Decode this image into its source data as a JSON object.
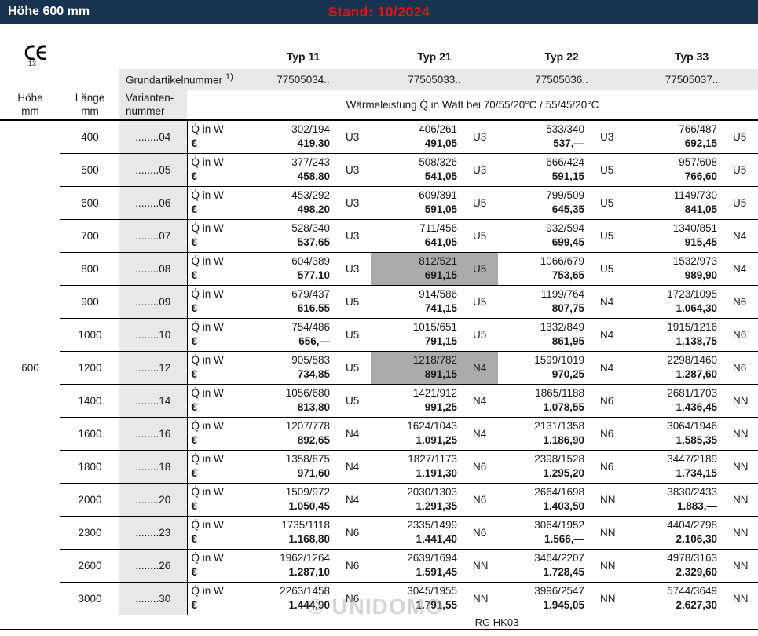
{
  "topbar": {
    "title": "Höhe 600 mm",
    "stand": "Stand: 10/2024"
  },
  "ce_mark": {
    "number": "13"
  },
  "header": {
    "typ_labels": [
      "Typ 11",
      "Typ 21",
      "Typ 22",
      "Typ 33"
    ],
    "grundartikel": {
      "label": "Grundartikelnummer",
      "sup": "1)",
      "values": [
        "77505034..",
        "77505033..",
        "77505036..",
        "77505037.."
      ]
    },
    "col_headers": {
      "hoehe": [
        "Höhe",
        "mm"
      ],
      "laenge": [
        "Länge",
        "mm"
      ],
      "variante": [
        "Varianten-",
        "nummer"
      ]
    },
    "waermeleistung": "Wärmeleistung Q̇ in Watt bei 70/55/20°C / 55/45/20°C"
  },
  "labels": {
    "watt": "Q̇ in W",
    "euro": "€"
  },
  "table": {
    "hoehe_value": "600",
    "rows": [
      {
        "laenge": "400",
        "variante": "........04",
        "typ11": {
          "watt": "302/194",
          "preis": "419,30",
          "code": "U3",
          "highlight": false
        },
        "typ21": {
          "watt": "406/261",
          "preis": "491,05",
          "code": "U3",
          "highlight": false
        },
        "typ22": {
          "watt": "533/340",
          "preis": "537,—",
          "code": "U3",
          "highlight": false
        },
        "typ33": {
          "watt": "766/487",
          "preis": "692,15",
          "code": "U5",
          "highlight": false
        }
      },
      {
        "laenge": "500",
        "variante": "........05",
        "typ11": {
          "watt": "377/243",
          "preis": "458,80",
          "code": "U3",
          "highlight": false
        },
        "typ21": {
          "watt": "508/326",
          "preis": "541,05",
          "code": "U3",
          "highlight": false
        },
        "typ22": {
          "watt": "666/424",
          "preis": "591,15",
          "code": "U5",
          "highlight": false
        },
        "typ33": {
          "watt": "957/608",
          "preis": "766,60",
          "code": "U5",
          "highlight": false
        }
      },
      {
        "laenge": "600",
        "variante": "........06",
        "typ11": {
          "watt": "453/292",
          "preis": "498,20",
          "code": "U3",
          "highlight": false
        },
        "typ21": {
          "watt": "609/391",
          "preis": "591,05",
          "code": "U5",
          "highlight": false
        },
        "typ22": {
          "watt": "799/509",
          "preis": "645,35",
          "code": "U5",
          "highlight": false
        },
        "typ33": {
          "watt": "1149/730",
          "preis": "841,05",
          "code": "U5",
          "highlight": false
        }
      },
      {
        "laenge": "700",
        "variante": "........07",
        "typ11": {
          "watt": "528/340",
          "preis": "537,65",
          "code": "U3",
          "highlight": false
        },
        "typ21": {
          "watt": "711/456",
          "preis": "641,05",
          "code": "U5",
          "highlight": false
        },
        "typ22": {
          "watt": "932/594",
          "preis": "699,45",
          "code": "U5",
          "highlight": false
        },
        "typ33": {
          "watt": "1340/851",
          "preis": "915,45",
          "code": "N4",
          "highlight": false
        }
      },
      {
        "laenge": "800",
        "variante": "........08",
        "typ11": {
          "watt": "604/389",
          "preis": "577,10",
          "code": "U3",
          "highlight": false
        },
        "typ21": {
          "watt": "812/521",
          "preis": "691,15",
          "code": "U5",
          "highlight": true
        },
        "typ22": {
          "watt": "1066/679",
          "preis": "753,65",
          "code": "U5",
          "highlight": false
        },
        "typ33": {
          "watt": "1532/973",
          "preis": "989,90",
          "code": "N4",
          "highlight": false
        }
      },
      {
        "laenge": "900",
        "variante": "........09",
        "typ11": {
          "watt": "679/437",
          "preis": "616,55",
          "code": "U5",
          "highlight": false
        },
        "typ21": {
          "watt": "914/586",
          "preis": "741,15",
          "code": "U5",
          "highlight": false
        },
        "typ22": {
          "watt": "1199/764",
          "preis": "807,75",
          "code": "N4",
          "highlight": false
        },
        "typ33": {
          "watt": "1723/1095",
          "preis": "1.064,30",
          "code": "N6",
          "highlight": false
        }
      },
      {
        "laenge": "1000",
        "variante": "........10",
        "typ11": {
          "watt": "754/486",
          "preis": "656,—",
          "code": "U5",
          "highlight": false
        },
        "typ21": {
          "watt": "1015/651",
          "preis": "791,15",
          "code": "U5",
          "highlight": false
        },
        "typ22": {
          "watt": "1332/849",
          "preis": "861,95",
          "code": "N4",
          "highlight": false
        },
        "typ33": {
          "watt": "1915/1216",
          "preis": "1.138,75",
          "code": "N6",
          "highlight": false
        }
      },
      {
        "laenge": "1200",
        "variante": "........12",
        "typ11": {
          "watt": "905/583",
          "preis": "734,85",
          "code": "U5",
          "highlight": false
        },
        "typ21": {
          "watt": "1218/782",
          "preis": "891,15",
          "code": "N4",
          "highlight": true
        },
        "typ22": {
          "watt": "1599/1019",
          "preis": "970,25",
          "code": "N4",
          "highlight": false
        },
        "typ33": {
          "watt": "2298/1460",
          "preis": "1.287,60",
          "code": "N6",
          "highlight": false
        }
      },
      {
        "laenge": "1400",
        "variante": "........14",
        "typ11": {
          "watt": "1056/680",
          "preis": "813,80",
          "code": "U5",
          "highlight": false
        },
        "typ21": {
          "watt": "1421/912",
          "preis": "991,25",
          "code": "N4",
          "highlight": false
        },
        "typ22": {
          "watt": "1865/1188",
          "preis": "1.078,55",
          "code": "N6",
          "highlight": false
        },
        "typ33": {
          "watt": "2681/1703",
          "preis": "1.436,45",
          "code": "NN",
          "highlight": false
        }
      },
      {
        "laenge": "1600",
        "variante": "........16",
        "typ11": {
          "watt": "1207/778",
          "preis": "892,65",
          "code": "N4",
          "highlight": false
        },
        "typ21": {
          "watt": "1624/1043",
          "preis": "1.091,25",
          "code": "N4",
          "highlight": false
        },
        "typ22": {
          "watt": "2131/1358",
          "preis": "1.186,90",
          "code": "N6",
          "highlight": false
        },
        "typ33": {
          "watt": "3064/1946",
          "preis": "1.585,35",
          "code": "NN",
          "highlight": false
        }
      },
      {
        "laenge": "1800",
        "variante": "........18",
        "typ11": {
          "watt": "1358/875",
          "preis": "971,60",
          "code": "N4",
          "highlight": false
        },
        "typ21": {
          "watt": "1827/1173",
          "preis": "1.191,30",
          "code": "N6",
          "highlight": false
        },
        "typ22": {
          "watt": "2398/1528",
          "preis": "1.295,20",
          "code": "N6",
          "highlight": false
        },
        "typ33": {
          "watt": "3447/2189",
          "preis": "1.734,15",
          "code": "NN",
          "highlight": false
        }
      },
      {
        "laenge": "2000",
        "variante": "........20",
        "typ11": {
          "watt": "1509/972",
          "preis": "1.050,45",
          "code": "N4",
          "highlight": false
        },
        "typ21": {
          "watt": "2030/1303",
          "preis": "1.291,35",
          "code": "N6",
          "highlight": false
        },
        "typ22": {
          "watt": "2664/1698",
          "preis": "1.403,50",
          "code": "NN",
          "highlight": false
        },
        "typ33": {
          "watt": "3830/2433",
          "preis": "1.883,—",
          "code": "NN",
          "highlight": false
        }
      },
      {
        "laenge": "2300",
        "variante": "........23",
        "typ11": {
          "watt": "1735/1118",
          "preis": "1.168,80",
          "code": "N6",
          "highlight": false
        },
        "typ21": {
          "watt": "2335/1499",
          "preis": "1.441,40",
          "code": "N6",
          "highlight": false
        },
        "typ22": {
          "watt": "3064/1952",
          "preis": "1.566,—",
          "code": "NN",
          "highlight": false
        },
        "typ33": {
          "watt": "4404/2798",
          "preis": "2.106,30",
          "code": "NN",
          "highlight": false
        }
      },
      {
        "laenge": "2600",
        "variante": "........26",
        "typ11": {
          "watt": "1962/1264",
          "preis": "1.287,10",
          "code": "N6",
          "highlight": false
        },
        "typ21": {
          "watt": "2639/1694",
          "preis": "1.591,45",
          "code": "NN",
          "highlight": false
        },
        "typ22": {
          "watt": "3464/2207",
          "preis": "1.728,45",
          "code": "NN",
          "highlight": false
        },
        "typ33": {
          "watt": "4978/3163",
          "preis": "2.329,60",
          "code": "NN",
          "highlight": false
        }
      },
      {
        "laenge": "3000",
        "variante": "........30",
        "typ11": {
          "watt": "2263/1458",
          "preis": "1.444,90",
          "code": "N6",
          "highlight": false
        },
        "typ21": {
          "watt": "3045/1955",
          "preis": "1.791,55",
          "code": "NN",
          "highlight": false
        },
        "typ22": {
          "watt": "3996/2547",
          "preis": "1.945,05",
          "code": "NN",
          "highlight": false
        },
        "typ33": {
          "watt": "5744/3649",
          "preis": "2.627,30",
          "code": "NN",
          "highlight": false
        }
      }
    ]
  },
  "footer": {
    "code": "RG HK03"
  },
  "watermark": "© UNIDOMO",
  "colors": {
    "navy": "#183350",
    "red": "#e8120f",
    "band_gray": "#e8e8ea",
    "highlight_gray": "#ababab"
  }
}
